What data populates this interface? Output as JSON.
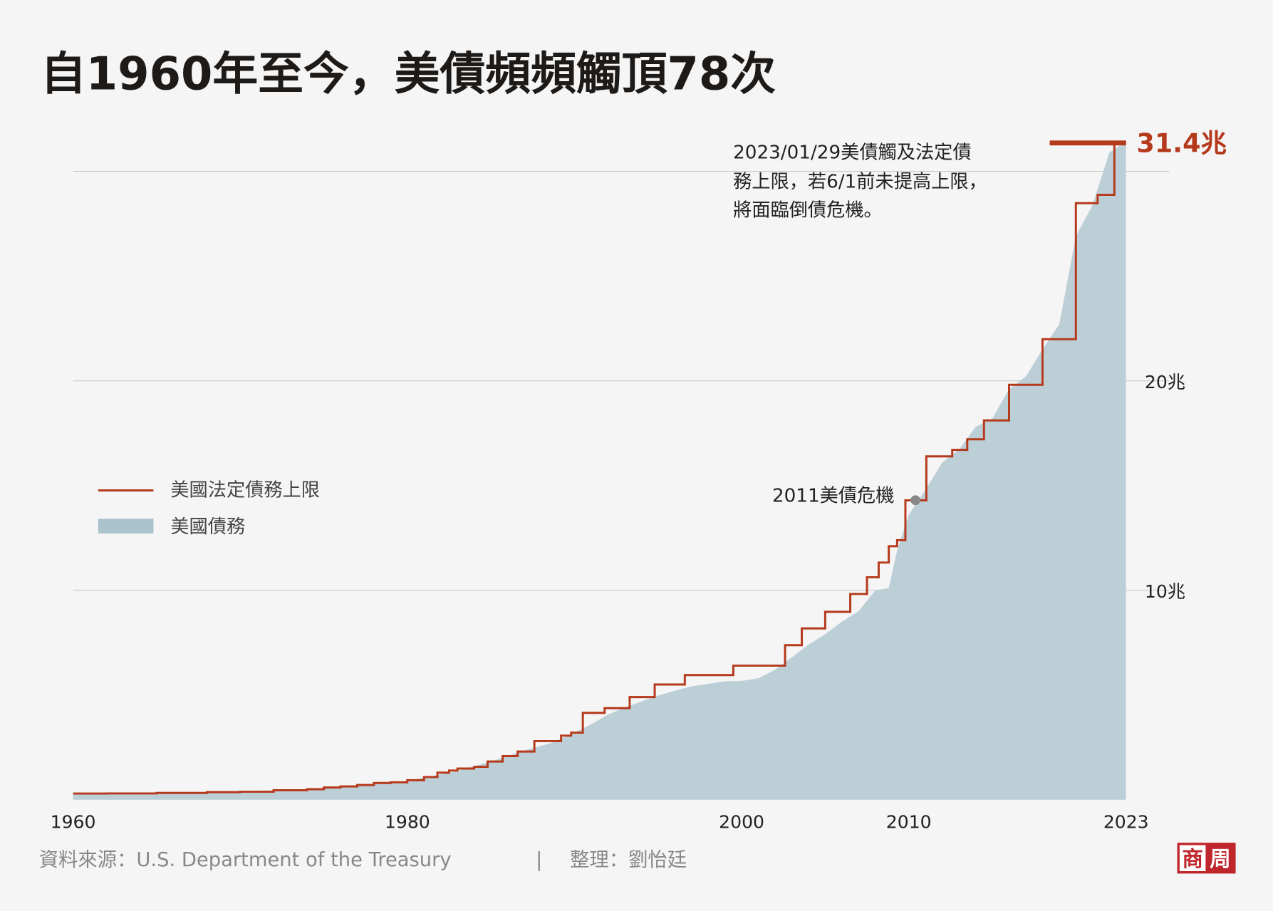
{
  "chart_data": {
    "type": "area",
    "title": "自1960年至今，美債頻頻觸頂78次",
    "xlim": [
      1960,
      2023
    ],
    "ylim": [
      0,
      30
    ],
    "x_ticks": [
      {
        "value": 1960,
        "label": "1960"
      },
      {
        "value": 1980,
        "label": "1980"
      },
      {
        "value": 2000,
        "label": "2000"
      },
      {
        "value": 2010,
        "label": "2010"
      },
      {
        "value": 2023,
        "label": "2023"
      }
    ],
    "y_ticks": [
      {
        "value": 10,
        "label": "10兆"
      },
      {
        "value": 20,
        "label": "20兆"
      },
      {
        "value": 30,
        "label": ""
      }
    ],
    "grid": true,
    "legend_position": "left-middle",
    "series": [
      {
        "name": "美國法定債務上限",
        "type": "step",
        "color": "#b5391b",
        "points": [
          [
            1960,
            0.295
          ],
          [
            1962,
            0.3
          ],
          [
            1965,
            0.32
          ],
          [
            1968,
            0.36
          ],
          [
            1970,
            0.38
          ],
          [
            1972,
            0.45
          ],
          [
            1974,
            0.5
          ],
          [
            1975,
            0.58
          ],
          [
            1976,
            0.63
          ],
          [
            1977,
            0.7
          ],
          [
            1978,
            0.8
          ],
          [
            1979,
            0.83
          ],
          [
            1980,
            0.93
          ],
          [
            1981,
            1.08
          ],
          [
            1981.8,
            1.29
          ],
          [
            1982.5,
            1.39
          ],
          [
            1983,
            1.49
          ],
          [
            1984,
            1.57
          ],
          [
            1984.8,
            1.82
          ],
          [
            1985.7,
            2.08
          ],
          [
            1986.6,
            2.3
          ],
          [
            1987.6,
            2.8
          ],
          [
            1989.2,
            3.06
          ],
          [
            1989.8,
            3.2
          ],
          [
            1990.5,
            4.145
          ],
          [
            1991.8,
            4.37
          ],
          [
            1993.3,
            4.9
          ],
          [
            1994.8,
            5.5
          ],
          [
            1996.6,
            5.95
          ],
          [
            1999.5,
            6.4
          ],
          [
            2002.6,
            7.38
          ],
          [
            2003.6,
            8.18
          ],
          [
            2005,
            8.97
          ],
          [
            2006.5,
            9.82
          ],
          [
            2007.5,
            10.62
          ],
          [
            2008.2,
            11.32
          ],
          [
            2008.8,
            12.1
          ],
          [
            2009.3,
            12.39
          ],
          [
            2009.8,
            14.29
          ],
          [
            2011.05,
            16.39
          ],
          [
            2012.6,
            16.7
          ],
          [
            2013.5,
            17.21
          ],
          [
            2014.5,
            18.11
          ],
          [
            2016,
            19.81
          ],
          [
            2018,
            21.99
          ],
          [
            2020,
            28.48
          ],
          [
            2021.3,
            28.88
          ],
          [
            2022.3,
            31.38
          ],
          [
            2023,
            31.38
          ]
        ]
      },
      {
        "name": "美國債務",
        "type": "area",
        "color": "#bccfd7",
        "points": [
          [
            1960,
            0.29
          ],
          [
            1965,
            0.32
          ],
          [
            1970,
            0.38
          ],
          [
            1975,
            0.54
          ],
          [
            1978,
            0.77
          ],
          [
            1980,
            0.9
          ],
          [
            1983,
            1.37
          ],
          [
            1985,
            1.82
          ],
          [
            1987,
            2.35
          ],
          [
            1988.6,
            2.7
          ],
          [
            1990,
            3.2
          ],
          [
            1991,
            3.6
          ],
          [
            1992,
            4.06
          ],
          [
            1993,
            4.4
          ],
          [
            1994,
            4.69
          ],
          [
            1995,
            4.97
          ],
          [
            1996,
            5.2
          ],
          [
            1997,
            5.41
          ],
          [
            1998,
            5.53
          ],
          [
            1999,
            5.66
          ],
          [
            2000,
            5.67
          ],
          [
            2001,
            5.8
          ],
          [
            2002,
            6.2
          ],
          [
            2003,
            6.8
          ],
          [
            2004,
            7.4
          ],
          [
            2005,
            7.9
          ],
          [
            2006,
            8.5
          ],
          [
            2007,
            9.0
          ],
          [
            2008,
            10.0
          ],
          [
            2008.8,
            10.1
          ],
          [
            2009.3,
            11.9
          ],
          [
            2010,
            13.6
          ],
          [
            2011,
            14.8
          ],
          [
            2012,
            16.1
          ],
          [
            2013,
            16.7
          ],
          [
            2014,
            17.8
          ],
          [
            2015,
            18.2
          ],
          [
            2016,
            19.6
          ],
          [
            2017,
            20.2
          ],
          [
            2018,
            21.5
          ],
          [
            2019,
            22.7
          ],
          [
            2020,
            26.9
          ],
          [
            2021,
            28.4
          ],
          [
            2022,
            30.9
          ],
          [
            2023,
            31.4
          ]
        ]
      }
    ],
    "annotations": [
      {
        "x": 2010.4,
        "y": 14.3,
        "text": "2011美債危機"
      },
      {
        "lines": [
          "2023/01/29美債觸及法定債",
          "務上限，若6/1前未提高上限，",
          "將面臨倒債危機。"
        ]
      },
      {
        "text": "31.4兆",
        "value": 31.4
      }
    ]
  },
  "footer": {
    "source": "資料來源：U.S. Department of the Treasury",
    "separator": "|",
    "editor": "整理：劉怡廷",
    "logo_text": "商周"
  },
  "colors": {
    "background": "#f5f5f5",
    "ceiling": "#b5391b",
    "debt": "#bccfd7",
    "logo": "#c0272d"
  }
}
